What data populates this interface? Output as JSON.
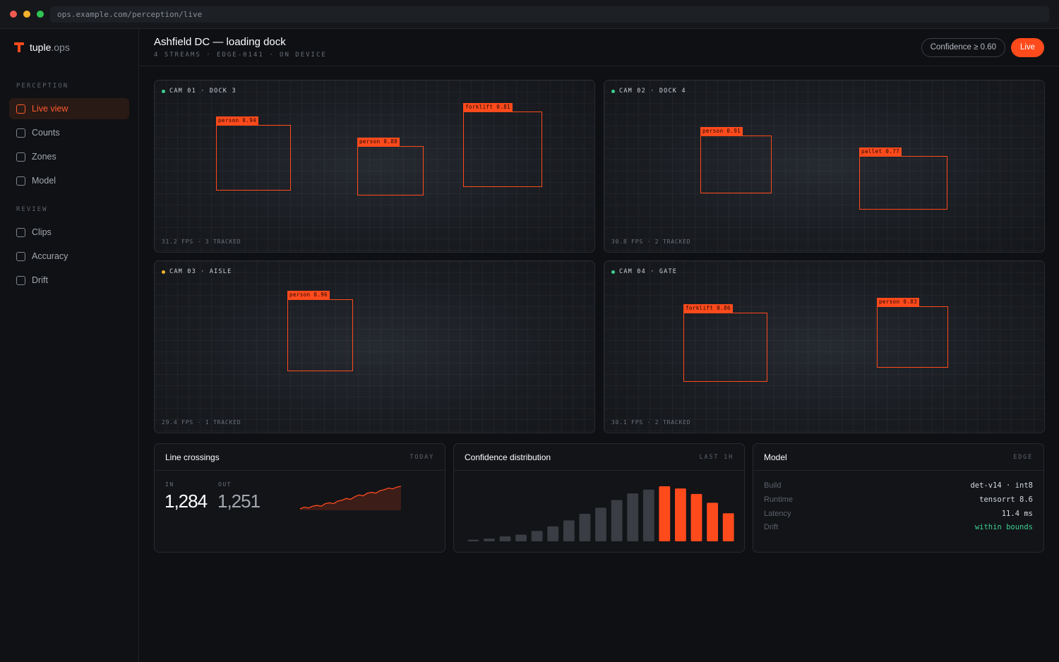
{
  "browser": {
    "url": "ops.example.com/perception/live"
  },
  "brand": {
    "name": "tuple",
    "suffix": ".ops"
  },
  "sidebar": {
    "sections": [
      {
        "title": "PERCEPTION",
        "items": [
          {
            "label": "Live view",
            "active": true
          },
          {
            "label": "Counts"
          },
          {
            "label": "Zones"
          },
          {
            "label": "Model"
          }
        ]
      },
      {
        "title": "REVIEW",
        "items": [
          {
            "label": "Clips"
          },
          {
            "label": "Accuracy"
          },
          {
            "label": "Drift"
          }
        ]
      }
    ]
  },
  "header": {
    "title": "Ashfield DC — loading dock",
    "subtitle": "4 STREAMS · EDGE-0141 · ON DEVICE",
    "confidence_label": "Confidence ≥ 0.60",
    "live_label": "Live"
  },
  "cameras": [
    {
      "label": "CAM 01 · DOCK 3",
      "status_color": "#3ecf8e",
      "footer": "31.2 FPS · 3 TRACKED",
      "detections": [
        {
          "label": "person 0.94"
        },
        {
          "label": "person 0.88"
        },
        {
          "label": "forklift 0.81"
        }
      ]
    },
    {
      "label": "CAM 02 · DOCK 4",
      "status_color": "#3ecf8e",
      "footer": "30.8 FPS · 2 TRACKED",
      "detections": [
        {
          "label": "person 0.91"
        },
        {
          "label": "pallet 0.77"
        }
      ]
    },
    {
      "label": "CAM 03 · AISLE",
      "status_color": "#f2b12d",
      "footer": "29.4 FPS · 1 TRACKED",
      "detections": [
        {
          "label": "person 0.96"
        }
      ]
    },
    {
      "label": "CAM 04 · GATE",
      "status_color": "#3ecf8e",
      "footer": "30.1 FPS · 2 TRACKED",
      "detections": [
        {
          "label": "forklift 0.86"
        },
        {
          "label": "person 0.83"
        }
      ]
    }
  ],
  "line_crossings": {
    "title": "Line crossings",
    "tag": "TODAY",
    "in_label": "IN",
    "in_value": "1,284",
    "out_label": "OUT",
    "out_value": "1,251",
    "sparkline": [
      2,
      4,
      3,
      5,
      6,
      5,
      8,
      9,
      8,
      11,
      12,
      14,
      13,
      16,
      18,
      17,
      20,
      21,
      20,
      23,
      24,
      26,
      25,
      27,
      28
    ]
  },
  "confidence": {
    "title": "Confidence distribution",
    "tag": "LAST 1H",
    "chart_data": {
      "type": "bar",
      "values": [
        3,
        5,
        9,
        12,
        19,
        27,
        38,
        50,
        61,
        75,
        87,
        94,
        100,
        96,
        86,
        70,
        51
      ],
      "highlight_from": 12
    }
  },
  "model": {
    "title": "Model",
    "tag": "EDGE",
    "rows": [
      {
        "label": "Build",
        "value": "det-v14 · int8"
      },
      {
        "label": "Runtime",
        "value": "tensorrt 8.6"
      },
      {
        "label": "Latency",
        "value": "11.4 ms"
      },
      {
        "label": "Drift",
        "value": "within bounds",
        "color": "#3ecf8e"
      }
    ]
  },
  "colors": {
    "accent": "#ff4a1c",
    "ok": "#3ecf8e",
    "warn": "#f2b12d"
  }
}
